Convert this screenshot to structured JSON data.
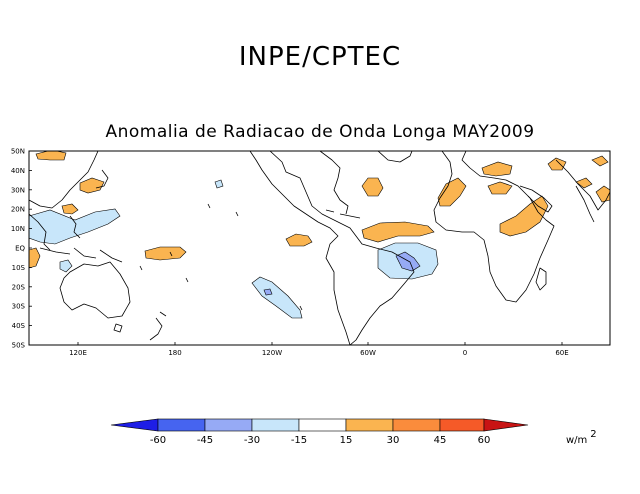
{
  "header": {
    "organization": "INPE/CPTEC"
  },
  "map": {
    "title": "Anomalia de Radiacao de Onda Longa MAY2009",
    "variable": "Outgoing longwave radiation anomaly",
    "month": "MAY2009",
    "lat_labels": [
      "50N",
      "40N",
      "30N",
      "20N",
      "10N",
      "EQ",
      "10S",
      "20S",
      "30S",
      "40S",
      "50S"
    ],
    "lon_labels": [
      "120E",
      "180",
      "120W",
      "60W",
      "0",
      "60E"
    ]
  },
  "colorbar": {
    "tick_labels": [
      "-60",
      "-45",
      "-30",
      "-15",
      "15",
      "30",
      "45",
      "60"
    ],
    "unit_base": "w/m",
    "unit_exp": "2",
    "colors": {
      "lt_m60": "#1e1ee6",
      "m60_m45": "#4664f0",
      "m45_m30": "#96aaf5",
      "m30_m15": "#c8e6fa",
      "m15_15": "#ffffff",
      "p15_30": "#fab450",
      "p30_45": "#fa8c3c",
      "p45_60": "#f55a28",
      "gt_60": "#c81414"
    }
  }
}
